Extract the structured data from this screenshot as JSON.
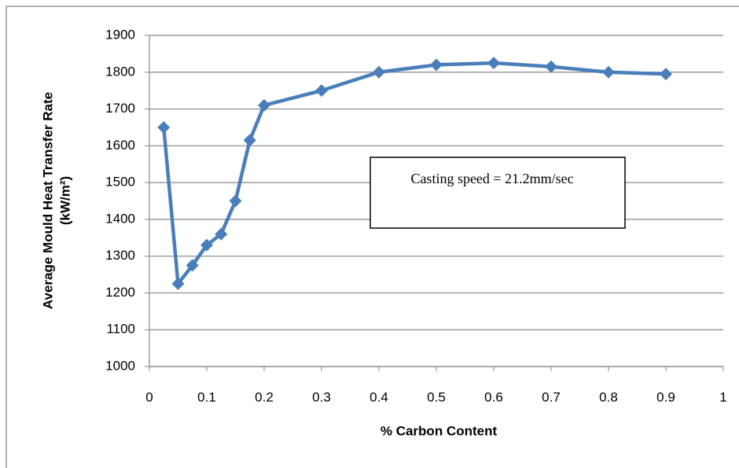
{
  "chart_data": {
    "type": "line",
    "ylabel": [
      "Average  Mould Heat Transfer Rate",
      "(kW/m²)"
    ],
    "xlabel": "% Carbon Content",
    "annotation": "Casting speed = 21.2mm/sec",
    "x": [
      0.025,
      0.05,
      0.075,
      0.1,
      0.125,
      0.15,
      0.175,
      0.2,
      0.3,
      0.4,
      0.5,
      0.6,
      0.7,
      0.8,
      0.9
    ],
    "values": [
      1650,
      1225,
      1275,
      1330,
      1360,
      1450,
      1615,
      1710,
      1750,
      1800,
      1820,
      1825,
      1815,
      1800,
      1795
    ],
    "color": "#4a7ebb",
    "xlim": [
      0,
      1
    ],
    "xticks": [
      0,
      0.1,
      0.2,
      0.3,
      0.4,
      0.5,
      0.6,
      0.7,
      0.8,
      0.9,
      1
    ],
    "ylim": [
      1000,
      1900
    ],
    "yticks": [
      1000,
      1100,
      1200,
      1300,
      1400,
      1500,
      1600,
      1700,
      1800,
      1900
    ],
    "grid": true
  }
}
